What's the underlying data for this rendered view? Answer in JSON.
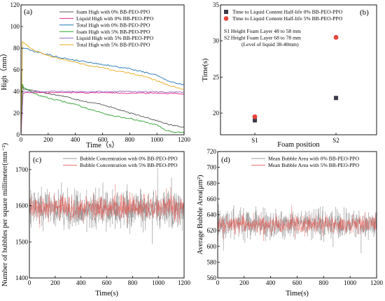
{
  "chart_data": [
    {
      "panel": "(a)",
      "type": "line",
      "xlabel": "Time（s）",
      "ylabel": "High（mm）",
      "xlim": [
        0,
        1200
      ],
      "ylim": [
        0,
        120
      ],
      "xticks": [
        0,
        200,
        400,
        600,
        800,
        1000,
        1200
      ],
      "yticks": [
        0,
        20,
        40,
        60,
        80,
        100,
        120
      ],
      "legend_position": "top-center",
      "series": [
        {
          "name": "foam High with 0% BB-PEO-PPO",
          "color": "#555555",
          "x": [
            0,
            10,
            20,
            100,
            200,
            300,
            400,
            500,
            600,
            700,
            800,
            900,
            1000,
            1100,
            1200
          ],
          "y": [
            0,
            45,
            42,
            41,
            38,
            36,
            33,
            30,
            28,
            24,
            20,
            17,
            13,
            9,
            7
          ]
        },
        {
          "name": "Liquid High with 0% BB-PEO-PPO",
          "color": "#e7298a",
          "x": [
            0,
            15,
            30,
            200,
            400,
            600,
            800,
            1000,
            1200
          ],
          "y": [
            0,
            38,
            39,
            39,
            39,
            39,
            38.5,
            38.5,
            38
          ]
        },
        {
          "name": "Total High with 0% BB-PEO-PPO",
          "color": "#1f77b4",
          "x": [
            0,
            10,
            30,
            100,
            200,
            300,
            400,
            500,
            600,
            700,
            800,
            900,
            1000,
            1100,
            1200
          ],
          "y": [
            0,
            80,
            80,
            77,
            74,
            71,
            69,
            67,
            65,
            63,
            61,
            58,
            55,
            49,
            46
          ]
        },
        {
          "name": "foam High with 5% BB-PEO-PPO",
          "color": "#2ca02c",
          "x": [
            0,
            10,
            20,
            100,
            200,
            300,
            400,
            500,
            600,
            700,
            800,
            900,
            1000,
            1050,
            1100,
            1200
          ],
          "y": [
            0,
            47,
            44,
            38,
            34,
            31,
            28,
            24,
            20,
            17,
            15,
            12,
            9,
            5,
            3,
            2
          ]
        },
        {
          "name": "Liquid High with 5% BB-PEO-PPO",
          "color": "#9467bd",
          "x": [
            0,
            15,
            30,
            200,
            400,
            600,
            800,
            1000,
            1200
          ],
          "y": [
            0,
            40,
            40,
            40,
            40,
            40,
            40,
            39.5,
            39.5
          ]
        },
        {
          "name": "Total High with 5% BB-PEO-PPO",
          "color": "#e6a817",
          "x": [
            0,
            10,
            30,
            100,
            200,
            300,
            400,
            500,
            600,
            700,
            800,
            900,
            1000,
            1100,
            1200
          ],
          "y": [
            0,
            86,
            84,
            78,
            73,
            70,
            67,
            64,
            62,
            59,
            57,
            54,
            50,
            45,
            42
          ]
        }
      ]
    },
    {
      "panel": "(b)",
      "type": "scatter",
      "xlabel": "Foam position",
      "ylabel": "Time(s)",
      "categories": [
        "S1",
        "S2"
      ],
      "ylim": [
        17,
        35
      ],
      "yticks": [
        20,
        25,
        30,
        35
      ],
      "legend_position": "top-left",
      "series": [
        {
          "name": "Time to Liquid Content Half-life 0% BB-PEO-PPO",
          "color": "#3a3a4a",
          "marker": "square",
          "values": [
            19.0,
            22.1
          ]
        },
        {
          "name": "Time to Liquid Content Half-life 5% BB-PEO-PPO",
          "color": "#e8433c",
          "marker": "circle",
          "values": [
            19.5,
            30.5
          ]
        }
      ],
      "annotations": [
        "S1    Height Foam Layer 48 to 58 mm",
        "S2    Height Foam Layer 68 to 78 mm",
        "(Level of liquid 38-40mm)"
      ]
    },
    {
      "panel": "(c)",
      "type": "line",
      "xlabel": "Time(s)",
      "ylabel": "Number of bubbles per square millimeter(mm⁻²)",
      "xlim": [
        0,
        1200
      ],
      "ylim": [
        1400,
        1750
      ],
      "xticks": [
        0,
        200,
        400,
        600,
        800,
        1000,
        1200
      ],
      "yticks": [
        1400,
        1500,
        1600,
        1700
      ],
      "legend_position": "top-center",
      "series": [
        {
          "name": "Bubble Concentration with 0% BB-PEO-PPO",
          "color": "#777777",
          "mean": 1590,
          "spread": 55
        },
        {
          "name": "Bubble Concentration with 5% BB-PEO-PPO",
          "color": "#e8433c",
          "mean": 1595,
          "spread": 35
        }
      ]
    },
    {
      "panel": "(d)",
      "type": "line",
      "xlabel": "Time(s)",
      "ylabel": "Average Bubble Area(μm²)",
      "xlim": [
        0,
        1200
      ],
      "ylim": [
        560,
        720
      ],
      "xticks": [
        0,
        200,
        400,
        600,
        800,
        1000,
        1200
      ],
      "yticks": [
        560,
        580,
        600,
        620,
        640,
        660,
        680,
        700,
        720
      ],
      "legend_position": "top-center",
      "series": [
        {
          "name": "Mean Bubble Area with 0% BB-PEO-PPO",
          "color": "#777777",
          "mean": 628,
          "spread": 20
        },
        {
          "name": "Mean Bubble Area with 5% BB-PEO-PPO",
          "color": "#e8433c",
          "mean": 628,
          "spread": 12
        }
      ]
    }
  ]
}
